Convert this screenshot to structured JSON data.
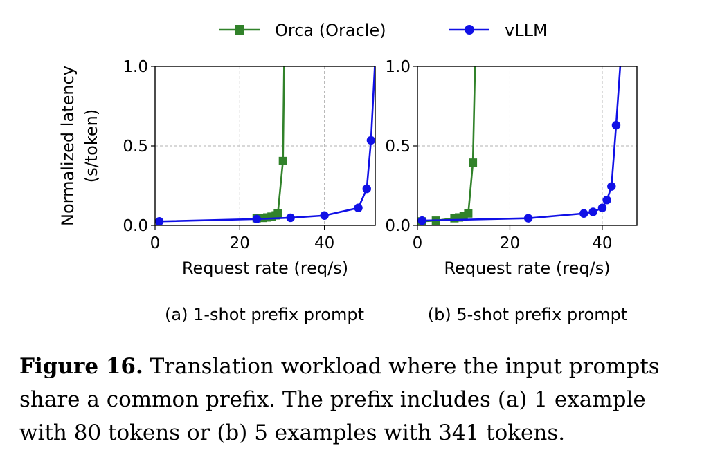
{
  "legend": {
    "items": [
      {
        "label": "Orca (Oracle)",
        "color": "#31822a",
        "marker": "square"
      },
      {
        "label": "vLLM",
        "color": "#1010e6",
        "marker": "circle"
      }
    ]
  },
  "chart_data": [
    {
      "type": "line",
      "subcaption": "(a) 1-shot prefix prompt",
      "xlabel": "Request rate (req/s)",
      "ylabel": "Normalized latency\n(s/token)",
      "xlim": [
        0,
        52
      ],
      "ylim": [
        0,
        1.0
      ],
      "xticks": [
        0,
        20,
        40
      ],
      "yticks": [
        0.0,
        0.5,
        1.0
      ],
      "ytick_labels": [
        "0.0",
        "0.5",
        "1.0"
      ],
      "grid": true,
      "series": [
        {
          "name": "Orca (Oracle)",
          "color": "#31822a",
          "marker": "square",
          "x": [
            24,
            25.5,
            26.5,
            27.5,
            28.5,
            29,
            30.2,
            30.5
          ],
          "y": [
            0.045,
            0.047,
            0.05,
            0.055,
            0.063,
            0.075,
            0.405,
            1.05
          ]
        },
        {
          "name": "vLLM",
          "color": "#1010e6",
          "marker": "circle",
          "x": [
            1,
            24,
            32,
            40,
            48,
            50,
            51,
            52
          ],
          "y": [
            0.025,
            0.04,
            0.048,
            0.062,
            0.11,
            0.23,
            0.535,
            1.05
          ]
        }
      ]
    },
    {
      "type": "line",
      "subcaption": "(b) 5-shot prefix prompt",
      "xlabel": "Request rate (req/s)",
      "ylabel": "",
      "xlim": [
        0,
        47.5
      ],
      "ylim": [
        0,
        1.0
      ],
      "xticks": [
        0,
        20,
        40
      ],
      "yticks": [
        0.0,
        0.5,
        1.0
      ],
      "ytick_labels": [
        "0.0",
        "0.5",
        "1.0"
      ],
      "grid": true,
      "series": [
        {
          "name": "Orca (Oracle)",
          "color": "#31822a",
          "marker": "square",
          "x": [
            1,
            4,
            8,
            9,
            10,
            11,
            12,
            12.5
          ],
          "y": [
            0.025,
            0.03,
            0.045,
            0.05,
            0.06,
            0.075,
            0.395,
            1.05
          ]
        },
        {
          "name": "vLLM",
          "color": "#1010e6",
          "marker": "circle",
          "x": [
            1,
            24,
            36,
            38,
            40,
            41,
            42,
            43,
            44
          ],
          "y": [
            0.03,
            0.045,
            0.075,
            0.085,
            0.11,
            0.16,
            0.245,
            0.63,
            1.05
          ]
        }
      ]
    }
  ],
  "caption": {
    "label": "Figure 16.",
    "text": " Translation workload where the input prompts share a common prefix. The prefix includes (a) 1 example with 80 tokens or (b) 5 examples with 341 tokens."
  }
}
